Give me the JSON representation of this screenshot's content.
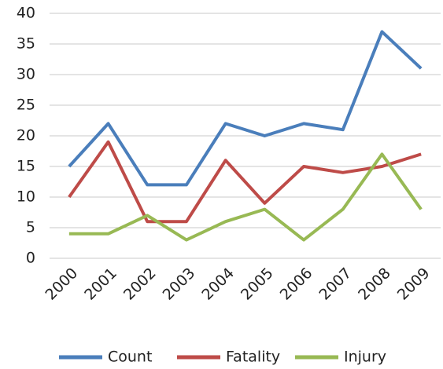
{
  "chart_data": {
    "type": "line",
    "categories": [
      "2000",
      "2001",
      "2002",
      "2003",
      "2004",
      "2005",
      "2006",
      "2007",
      "2008",
      "2009"
    ],
    "series": [
      {
        "name": "Count",
        "color": "#4a7ebb",
        "values": [
          15,
          22,
          12,
          12,
          22,
          20,
          22,
          21,
          37,
          31
        ]
      },
      {
        "name": "Fatality",
        "color": "#be4b48",
        "values": [
          10,
          19,
          6,
          6,
          16,
          9,
          15,
          14,
          15,
          17
        ]
      },
      {
        "name": "Injury",
        "color": "#98b954",
        "values": [
          4,
          4,
          7,
          3,
          6,
          8,
          3,
          8,
          17,
          8
        ]
      }
    ],
    "ylim": [
      0,
      40
    ],
    "yticks": [
      0,
      5,
      10,
      15,
      20,
      25,
      30,
      35,
      40
    ],
    "grid": true,
    "legend": "bottom"
  }
}
